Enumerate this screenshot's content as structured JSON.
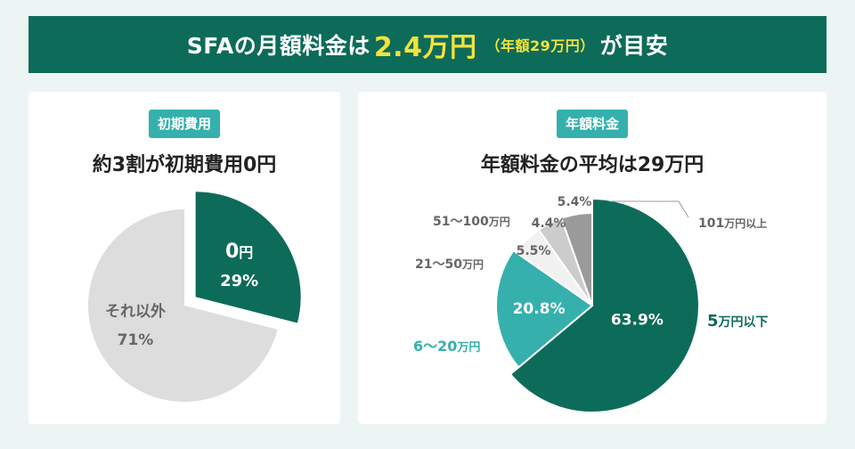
{
  "banner": {
    "pre": "SFAの月額料金は",
    "highlight": "2.4万円",
    "annual": "（年額29万円）",
    "post": "が目安"
  },
  "left_panel": {
    "badge": "初期費用",
    "title": "約3割が初期費用0円"
  },
  "right_panel": {
    "badge": "年額料金",
    "title": "年額料金の平均は29万円"
  },
  "colors": {
    "dark_green": "#0d6b59",
    "teal": "#35b0ac",
    "light_gray": "#dddddd",
    "yellow": "#f3e23c"
  },
  "chart_data": [
    {
      "type": "pie",
      "title": "約3割が初期費用0円",
      "slices": [
        {
          "label": "0",
          "unit": "円",
          "value": 29,
          "display": "29%",
          "color": "#0d6b59"
        },
        {
          "label": "それ以外",
          "value": 71,
          "display": "71%",
          "color": "#dddddd"
        }
      ]
    },
    {
      "type": "pie",
      "title": "年額料金の平均は29万円",
      "slices": [
        {
          "label_num": "5",
          "label_unit": "万円以下",
          "value": 63.9,
          "display": "63.9%",
          "color": "#0d6b59"
        },
        {
          "label_num": "6～20",
          "label_unit": "万円",
          "value": 20.8,
          "display": "20.8%",
          "color": "#35b0ac"
        },
        {
          "label_num": "21～50",
          "label_unit": "万円",
          "value": 5.5,
          "display": "5.5%",
          "color": "#f1f1f1"
        },
        {
          "label_num": "51～100",
          "label_unit": "万円",
          "value": 4.4,
          "display": "4.4%",
          "color": "#cccccc"
        },
        {
          "label_num": "101",
          "label_unit": "万円以上",
          "value": 5.4,
          "display": "5.4%",
          "color": "#9a9a9a"
        }
      ]
    }
  ]
}
